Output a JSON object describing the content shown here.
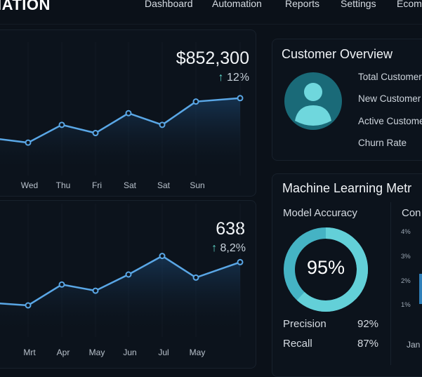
{
  "header": {
    "logo": "IATION",
    "nav": [
      "Dashboard",
      "Automation",
      "Reports",
      "Settings",
      "Ecom"
    ]
  },
  "revenue": {
    "value": "$852,300",
    "delta": "12%",
    "arrow": "↑",
    "chart_data": {
      "type": "area",
      "categories": [
        "Tue",
        "Wed",
        "Thu",
        "Fri",
        "Sat",
        "Sat",
        "Sun",
        ""
      ],
      "values": [
        53,
        47,
        73,
        61,
        90,
        73,
        107,
        112
      ],
      "labels": [
        "e",
        "Wed",
        "Thu",
        "Fri",
        "Sat",
        "Sat",
        "Sun"
      ]
    }
  },
  "orders": {
    "value": "638",
    "delta": "8,2%",
    "arrow": "↑",
    "chart_data": {
      "type": "area",
      "categories": [
        "Feb",
        "Mrt",
        "Apr",
        "May",
        "Jun",
        "Jul",
        "May",
        ""
      ],
      "values": [
        73,
        70,
        97,
        89,
        110,
        134,
        106,
        126
      ],
      "labels": [
        "b",
        "Mrt",
        "Apr",
        "May",
        "Jun",
        "Jul",
        "May"
      ]
    }
  },
  "customer": {
    "title": "Customer Overview",
    "items": [
      "Total Customer",
      "New Customer",
      "Active Custome",
      "Churn Rate"
    ],
    "icon": "user-avatar-icon"
  },
  "ml": {
    "title": "Machine Learning Metr",
    "accuracy_label": "Model Accuracy",
    "accuracy": "95%",
    "accuracy_value": 95,
    "precision_label": "Precision",
    "precision": "92%",
    "recall_label": "Recall",
    "recall": "87%",
    "conv": {
      "title": "Con",
      "ticks": [
        "4%",
        "3%",
        "2%",
        "1%"
      ],
      "x_label": "Jan"
    }
  },
  "colors": {
    "line": "#5aa7e6",
    "accent": "#5fd6c8",
    "donut": "#63d0d8",
    "donut_dark": "#45b3c4"
  }
}
